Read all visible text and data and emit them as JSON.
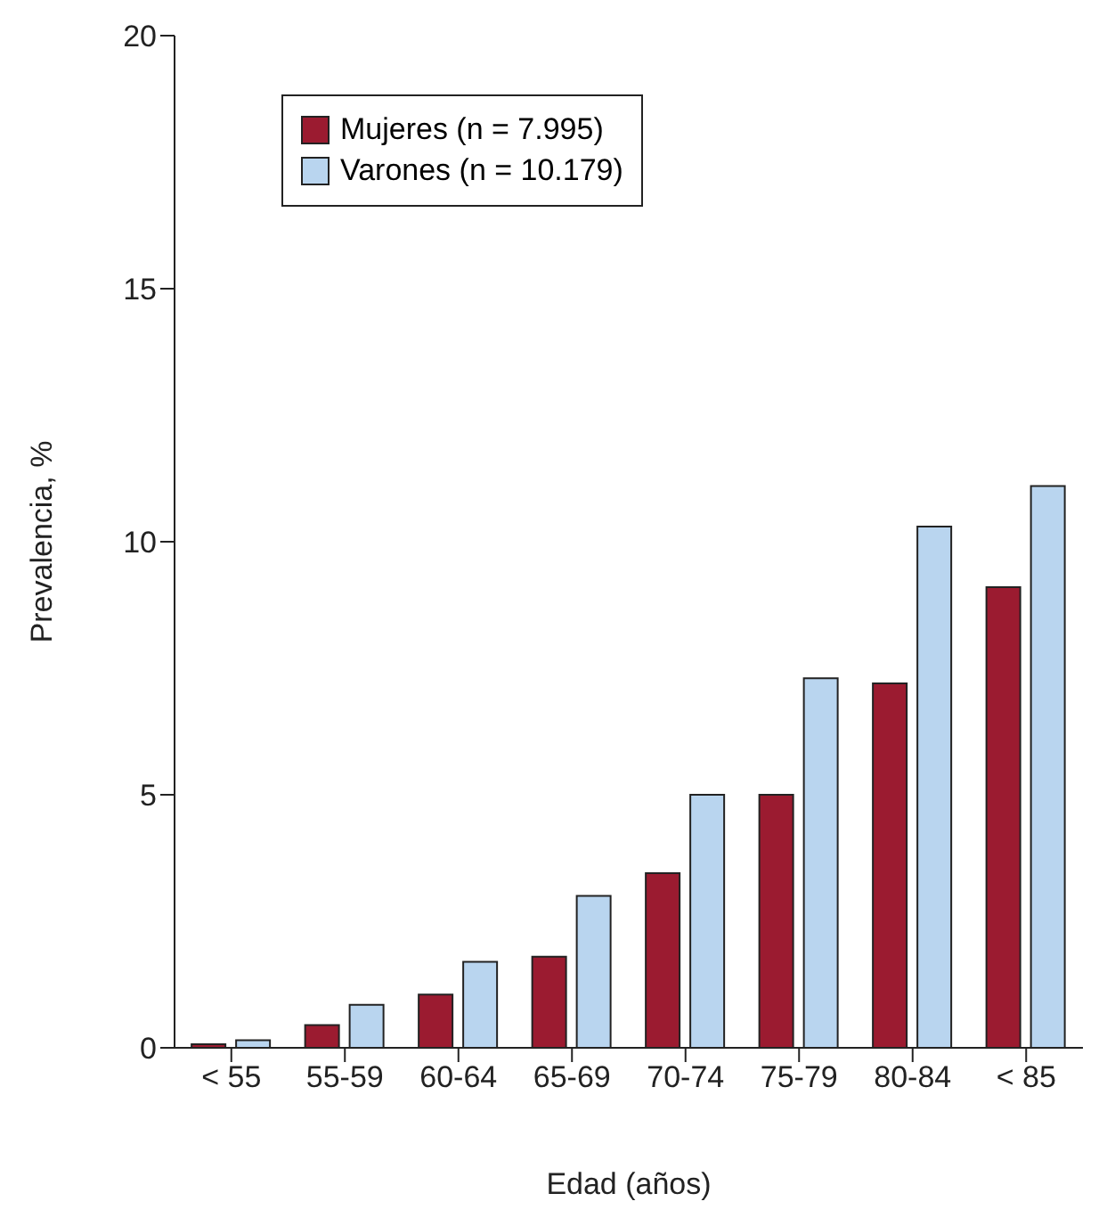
{
  "chart_data": {
    "type": "bar",
    "xlabel": "Edad (años)",
    "ylabel": "Prevalencia, %",
    "categories": [
      "< 55",
      "55-59",
      "60-64",
      "65-69",
      "70-74",
      "75-79",
      "80-84",
      "< 85"
    ],
    "series": [
      {
        "name": "Mujeres (n = 7.995)",
        "color": "#9b1b30",
        "values": [
          0.07,
          0.45,
          1.05,
          1.8,
          3.45,
          5.0,
          7.2,
          9.1
        ]
      },
      {
        "name": "Varones (n = 10.179)",
        "color": "#b9d5ef",
        "values": [
          0.15,
          0.85,
          1.7,
          3.0,
          5.0,
          7.3,
          10.3,
          11.1
        ]
      }
    ],
    "ylim": [
      0,
      20
    ],
    "yticks": [
      0,
      5,
      10,
      15,
      20
    ],
    "grid": false,
    "legend": "top left"
  }
}
